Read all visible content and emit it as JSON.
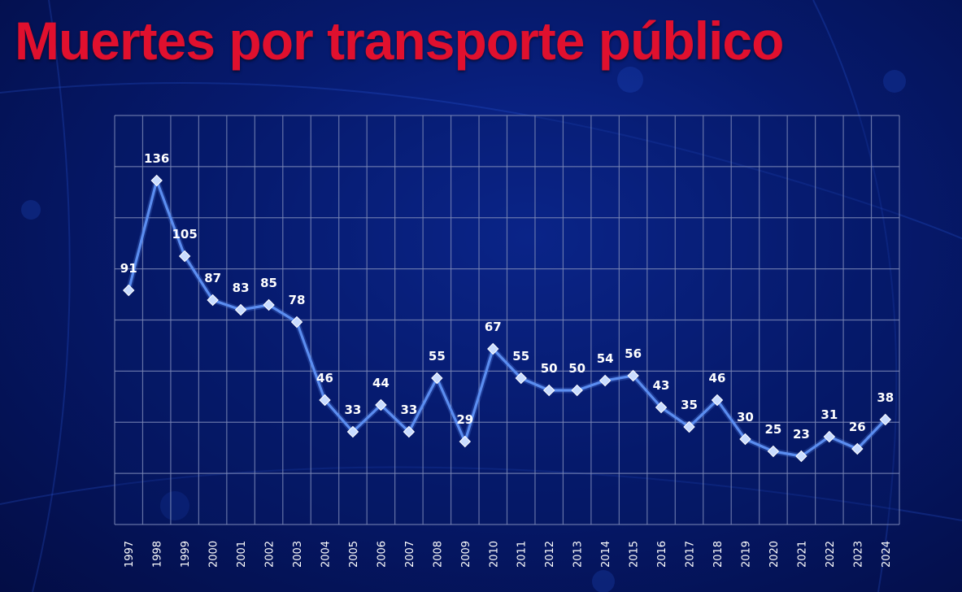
{
  "title": "Muertes por transporte público",
  "colors": {
    "title": "#e0102e",
    "line": "#5b8df0",
    "marker": "#c9dcff",
    "grid": "#7d8ab8"
  },
  "chart_data": {
    "type": "line",
    "title": "Muertes por transporte público",
    "categories": [
      "1997",
      "1998",
      "1999",
      "2000",
      "2001",
      "2002",
      "2003",
      "2004",
      "2005",
      "2006",
      "2007",
      "2008",
      "2009",
      "2010",
      "2011",
      "2012",
      "2013",
      "2014",
      "2015",
      "2016",
      "2017",
      "2018",
      "2019",
      "2020",
      "2021",
      "2022",
      "2023",
      "2024"
    ],
    "values": [
      91,
      136,
      105,
      87,
      83,
      85,
      78,
      46,
      33,
      44,
      33,
      55,
      29,
      67,
      55,
      50,
      50,
      54,
      56,
      43,
      35,
      46,
      30,
      25,
      23,
      31,
      26,
      38
    ],
    "xlabel": "",
    "ylabel": "",
    "grid": true,
    "data_labels": true
  }
}
